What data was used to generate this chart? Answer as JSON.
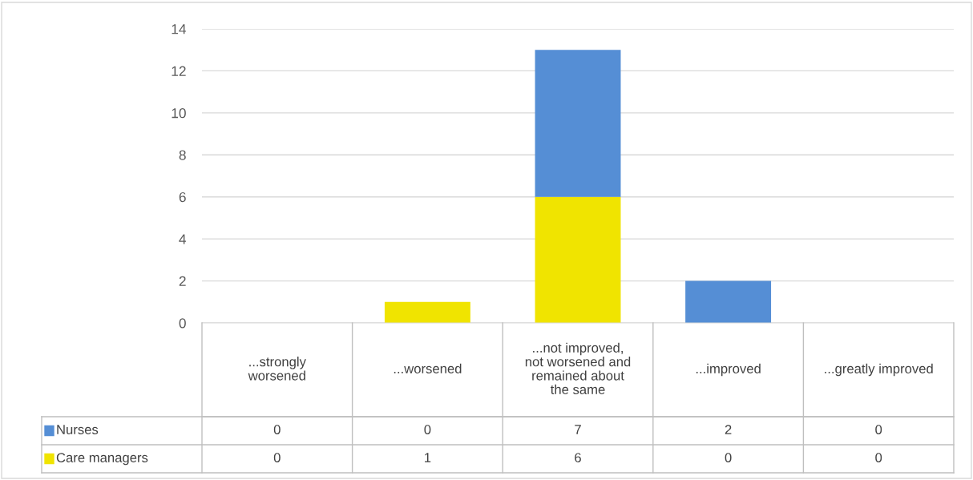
{
  "chart_data": {
    "type": "bar",
    "stacked": true,
    "data_labels": true,
    "categories": [
      "...strongly worsened",
      "...worsened",
      "...not improved, not worsened and remained about the same",
      "...improved",
      "...greatly improved"
    ],
    "series": [
      {
        "name": "Care managers",
        "color": "#f0e400",
        "values": [
          0,
          1,
          6,
          0,
          0
        ]
      },
      {
        "name": "Nurses",
        "color": "#558ed5",
        "values": [
          0,
          0,
          7,
          2,
          0
        ]
      }
    ],
    "legend": "bottom left",
    "ylim": [
      0,
      14
    ],
    "yticks": [
      0,
      2,
      4,
      6,
      8,
      10,
      12,
      14
    ],
    "grid": "y"
  }
}
